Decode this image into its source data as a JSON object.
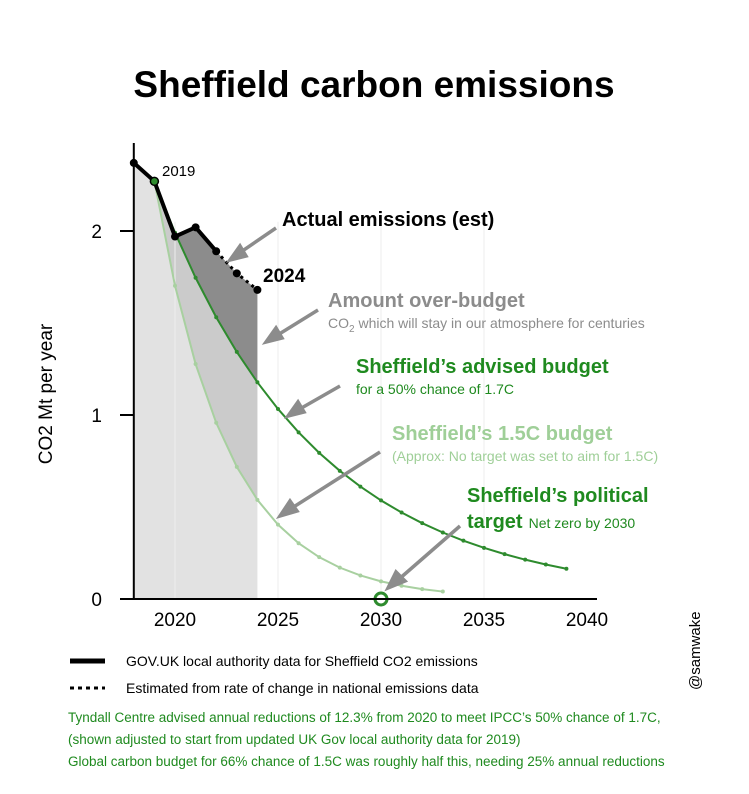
{
  "chart_data": {
    "type": "line",
    "title": "Sheffield carbon emissions",
    "ylabel": "CO2 Mt per year",
    "xlabel": "",
    "xlim": [
      2018,
      2040
    ],
    "ylim": [
      0,
      2.5
    ],
    "x_ticks": [
      "2020",
      "2025",
      "2030",
      "2035",
      "2040"
    ],
    "y_ticks": [
      "0",
      "1",
      "2"
    ],
    "colors": {
      "actual": "#000000",
      "advised": "#2e8b2e",
      "budget15": "#a8d0a0",
      "overbudget": "#8c8c8c",
      "text_green": "#1f8a1f",
      "text_light_green": "#9fcf98",
      "text_gray": "#8c8c8c"
    },
    "series": [
      {
        "name": "GOV.UK local authority data for Sheffield CO2 emissions",
        "style": "solid",
        "x": [
          2018,
          2019,
          2020,
          2021,
          2022
        ],
        "values": [
          2.37,
          2.27,
          1.97,
          2.02,
          1.89
        ]
      },
      {
        "name": "Estimated from rate of change in national emissions data",
        "style": "dotted",
        "x": [
          2022,
          2023,
          2024
        ],
        "values": [
          1.89,
          1.77,
          1.68
        ]
      },
      {
        "name": "Sheffield's advised budget",
        "start_year": 2019,
        "start_value": 2.27,
        "annual_reduction": 0.123,
        "end_year": 2039
      },
      {
        "name": "Sheffield's 1.5C budget",
        "start_year": 2019,
        "start_value": 2.27,
        "annual_reduction": 0.25,
        "end_year": 2033
      },
      {
        "name": "Sheffield's political target",
        "x": [
          2030
        ],
        "values": [
          0
        ]
      }
    ],
    "annotations": {
      "year_2019": "2019",
      "year_2024": "2024",
      "actual": "Actual emissions (est)",
      "overbudget_title": "Amount over-budget",
      "overbudget_sub_pre": "CO",
      "overbudget_sub_subscript": "2",
      "overbudget_sub_post": " which will stay in our atmosphere for centuries",
      "advised_title": "Sheffield’s advised budget",
      "advised_sub": "for a 50% chance of 1.7C",
      "budget15_title": "Sheffield’s 1.5C budget",
      "budget15_sub": "(Approx: No target was set to aim for 1.5C)",
      "political_title1": "Sheffield’s political",
      "political_title2": "target",
      "political_sub": "Net zero by 2030"
    }
  },
  "legend": {
    "solid": "GOV.UK local authority data for Sheffield CO2 emissions",
    "dotted": "Estimated from rate of change in national emissions data"
  },
  "notes": [
    "Tyndall Centre advised annual reductions of 12.3% from 2020 to meet IPCC’s 50% chance of 1.7C,",
    "(shown adjusted to start from updated UK Gov local authority data for 2019)",
    "Global carbon budget for 66% chance of 1.5C was roughly half this, needing 25% annual reductions"
  ],
  "credit": "@samwake"
}
